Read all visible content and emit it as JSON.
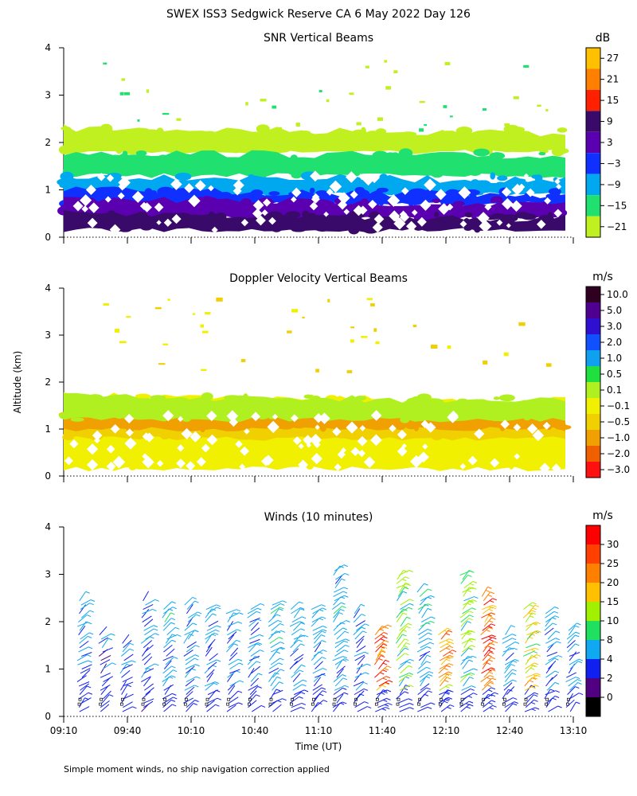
{
  "page_title": "SWEX ISS3 Sedgwick Reserve CA   6 May 2022 Day 126",
  "footnote": "Simple moment winds, no ship navigation correction applied",
  "shared_axes": {
    "ylabel": "Altitude (km)",
    "xlabel": "Time (UT)",
    "x_ticks": [
      "09:10",
      "09:40",
      "10:10",
      "10:40",
      "11:10",
      "11:40",
      "12:10",
      "12:40",
      "13:10"
    ],
    "y_ticks": [
      "0",
      "1",
      "2",
      "3",
      "4"
    ]
  },
  "chart_data": [
    {
      "type": "heatmap",
      "title": "SNR Vertical Beams",
      "units": "dB",
      "x_range": [
        "09:10",
        "13:10"
      ],
      "ylim": [
        0,
        4
      ],
      "colorbar": {
        "labels": [
          "27",
          "21",
          "15",
          "9",
          "3",
          "−3",
          "−9",
          "−15",
          "−21"
        ],
        "colors": [
          "#ffc000",
          "#ff8000",
          "#ff2000",
          "#3a0a6a",
          "#5a00b0",
          "#1030ff",
          "#00a8f0",
          "#20e070",
          "#c0f020"
        ]
      },
      "layers": [
        {
          "level": "-21 to -15 dB",
          "bottom_km": 1.8,
          "top_km": 2.3,
          "color": "#c0f020"
        },
        {
          "level": "-15 to -9 dB",
          "bottom_km": 1.3,
          "top_km": 1.8,
          "color": "#20e070"
        },
        {
          "level": "-9 to -3 dB",
          "bottom_km": 0.9,
          "top_km": 1.3,
          "color": "#00a8f0"
        },
        {
          "level": "-3 to 3 dB",
          "bottom_km": 0.7,
          "top_km": 1.0,
          "color": "#1030ff"
        },
        {
          "level": "3 to 9 dB",
          "bottom_km": 0.4,
          "top_km": 0.8,
          "color": "#5a00b0"
        },
        {
          "level": "9 to 15 dB",
          "bottom_km": 0.15,
          "top_km": 0.5,
          "color": "#3a0a6a"
        }
      ]
    },
    {
      "type": "heatmap",
      "title": "Doppler Velocity Vertical Beams",
      "units": "m/s",
      "x_range": [
        "09:10",
        "13:10"
      ],
      "ylim": [
        0,
        4
      ],
      "colorbar": {
        "labels": [
          "10.0",
          "5.0",
          "3.0",
          "2.0",
          "1.0",
          "0.5",
          "0.1",
          "−0.1",
          "−0.5",
          "−1.0",
          "−2.0",
          "−3.0"
        ],
        "colors": [
          "#300020",
          "#500090",
          "#3010d0",
          "#1050ff",
          "#10a0f0",
          "#20e040",
          "#b0f020",
          "#f0f000",
          "#f0d000",
          "#f0a000",
          "#f06000",
          "#ff1010"
        ]
      },
      "layers": [
        {
          "level": "-0.1 to 0.1 m/s",
          "bottom_km": 0.15,
          "top_km": 1.7,
          "color": "#f0f000"
        },
        {
          "level": "-0.5 to -0.1 m/s",
          "bottom_km": 0.8,
          "top_km": 1.5,
          "color": "#f0d000"
        },
        {
          "level": "-1.0 to -0.5 m/s",
          "bottom_km": 1.0,
          "top_km": 1.4,
          "color": "#f0a000"
        },
        {
          "level": "0.1 to 0.5 m/s",
          "bottom_km": 1.2,
          "top_km": 1.7,
          "color": "#b0f020"
        }
      ]
    },
    {
      "type": "scatter",
      "title": "Winds (10 minutes)",
      "units": "m/s",
      "x_range": [
        "09:10",
        "13:10"
      ],
      "ylim": [
        0,
        4
      ],
      "colorbar": {
        "labels": [
          "30",
          "25",
          "20",
          "15",
          "10",
          "8",
          "4",
          "2",
          "0"
        ],
        "colors": [
          "#ff0000",
          "#ff4000",
          "#ff8000",
          "#ffc000",
          "#a0f000",
          "#20e060",
          "#10a8f0",
          "#1020f0",
          "#500080",
          "#000000"
        ]
      },
      "profiles": [
        {
          "time": "09:10",
          "max_km": 2.5,
          "speed_ms": 4
        },
        {
          "time": "09:20",
          "max_km": 1.8,
          "speed_ms": 3
        },
        {
          "time": "09:30",
          "max_km": 1.6,
          "speed_ms": 4
        },
        {
          "time": "09:40",
          "max_km": 2.5,
          "speed_ms": 3
        },
        {
          "time": "09:50",
          "max_km": 2.3,
          "speed_ms": 5
        },
        {
          "time": "10:00",
          "max_km": 2.4,
          "speed_ms": 4
        },
        {
          "time": "10:10",
          "max_km": 2.3,
          "speed_ms": 4
        },
        {
          "time": "10:20",
          "max_km": 2.2,
          "speed_ms": 4
        },
        {
          "time": "10:30",
          "max_km": 2.3,
          "speed_ms": 4
        },
        {
          "time": "10:40",
          "max_km": 2.4,
          "speed_ms": 5
        },
        {
          "time": "10:50",
          "max_km": 2.3,
          "speed_ms": 4
        },
        {
          "time": "11:00",
          "max_km": 2.3,
          "speed_ms": 4
        },
        {
          "time": "11:10",
          "max_km": 3.1,
          "speed_ms": 5
        },
        {
          "time": "11:20",
          "max_km": 2.2,
          "speed_ms": 4
        },
        {
          "time": "11:30",
          "max_km": 1.9,
          "speed_ms": 25
        },
        {
          "time": "11:40",
          "max_km": 3.0,
          "speed_ms": 10
        },
        {
          "time": "11:50",
          "max_km": 2.7,
          "speed_ms": 5
        },
        {
          "time": "12:00",
          "max_km": 1.8,
          "speed_ms": 20
        },
        {
          "time": "12:10",
          "max_km": 3.0,
          "speed_ms": 10
        },
        {
          "time": "12:20",
          "max_km": 2.6,
          "speed_ms": 25
        },
        {
          "time": "12:30",
          "max_km": 1.8,
          "speed_ms": 5
        },
        {
          "time": "12:40",
          "max_km": 2.3,
          "speed_ms": 15
        },
        {
          "time": "12:50",
          "max_km": 2.2,
          "speed_ms": 4
        },
        {
          "time": "13:00",
          "max_km": 1.9,
          "speed_ms": 4
        }
      ]
    }
  ]
}
